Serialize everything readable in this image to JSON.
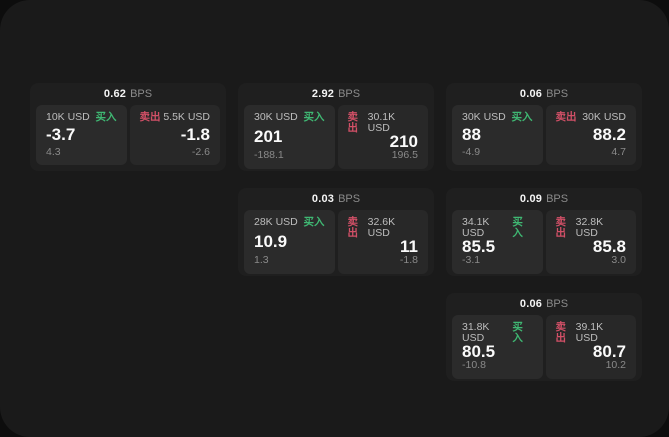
{
  "colors": {
    "background": "#0d0d0d",
    "surface": "#1a1a1a",
    "card": "#1f1f1f",
    "panel": "#2a2a2a",
    "buy_green": "#3fb873",
    "sell_red": "#d25067",
    "price_white": "#f5f5f5",
    "muted_gray": "#8a8a8a"
  },
  "cards": [
    {
      "bps": "0.62",
      "unit": "BPS",
      "buy": {
        "amount": "10K USD",
        "label": "买入",
        "price": "-3.7",
        "delta": "4.3"
      },
      "sell": {
        "label": "卖出",
        "amount": "5.5K USD",
        "price": "-1.8",
        "delta": "-2.6"
      }
    },
    {
      "bps": "2.92",
      "unit": "BPS",
      "buy": {
        "amount": "30K USD",
        "label": "买入",
        "price": "201",
        "delta": "-188.1"
      },
      "sell": {
        "label": "卖出",
        "amount": "30.1K USD",
        "price": "210",
        "delta": "196.5"
      }
    },
    {
      "bps": "0.06",
      "unit": "BPS",
      "buy": {
        "amount": "30K USD",
        "label": "买入",
        "price": "88",
        "delta": "-4.9"
      },
      "sell": {
        "label": "卖出",
        "amount": "30K USD",
        "price": "88.2",
        "delta": "4.7"
      }
    },
    {
      "bps": "0.03",
      "unit": "BPS",
      "buy": {
        "amount": "28K USD",
        "label": "买入",
        "price": "10.9",
        "delta": "1.3"
      },
      "sell": {
        "label": "卖出",
        "amount": "32.6K USD",
        "price": "11",
        "delta": "-1.8"
      }
    },
    {
      "bps": "0.09",
      "unit": "BPS",
      "buy": {
        "amount": "34.1K USD",
        "label": "买入",
        "price": "85.5",
        "delta": "-3.1"
      },
      "sell": {
        "label": "卖出",
        "amount": "32.8K USD",
        "price": "85.8",
        "delta": "3.0"
      }
    },
    {
      "bps": "0.06",
      "unit": "BPS",
      "buy": {
        "amount": "31.8K USD",
        "label": "买入",
        "price": "80.5",
        "delta": "-10.8"
      },
      "sell": {
        "label": "卖出",
        "amount": "39.1K USD",
        "price": "80.7",
        "delta": "10.2"
      }
    }
  ]
}
